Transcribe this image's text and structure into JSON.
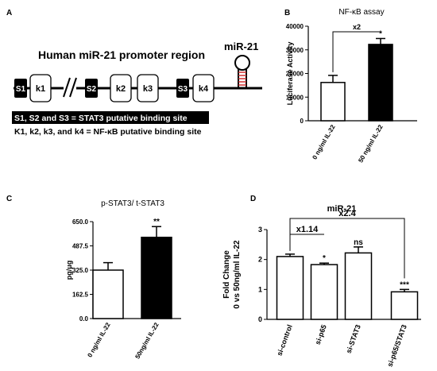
{
  "panels": {
    "A": {
      "letter": "A",
      "title": "Human miR-21 promoter region",
      "mir_label": "miR-21",
      "stat_sites": [
        "S1",
        "S2",
        "S3"
      ],
      "nfkb_sites": [
        "k1",
        "k2",
        "k3",
        "k4"
      ],
      "legend_stat3": "S1, S2 and S3 = STAT3 putative binding site",
      "legend_nfkb": "K1, k2, k3, and k4 = NF-κB putative binding site"
    },
    "B": {
      "letter": "B"
    },
    "C": {
      "letter": "C"
    },
    "D": {
      "letter": "D"
    }
  },
  "chart_data": [
    {
      "type": "bar",
      "panel": "B",
      "title": "NF-κB assay",
      "ylabel": "Luciferase Activity",
      "xlabel": "",
      "categories": [
        "0 ng/ml IL-22",
        "50 ng/ml IL-22"
      ],
      "values": [
        16200,
        32300
      ],
      "errors": [
        3000,
        2500
      ],
      "fills": [
        "#ffffff",
        "#000000"
      ],
      "yticks": [
        "0",
        "10000",
        "20000",
        "30000",
        "40000"
      ],
      "ylim": [
        0,
        40000
      ],
      "annotations": {
        "fold": "x2",
        "significance": [
          "",
          "*"
        ]
      }
    },
    {
      "type": "bar",
      "panel": "C",
      "title": "p-STAT3/ t-STAT3",
      "ylabel": "pg/μg",
      "xlabel": "",
      "categories": [
        "0 ng/ml IL-22",
        "50ng/ml IL-22"
      ],
      "values": [
        325,
        545
      ],
      "errors": [
        50,
        72
      ],
      "fills": [
        "#ffffff",
        "#000000"
      ],
      "yticks": [
        "0.0",
        "162.5",
        "325.0",
        "487.5",
        "650.0"
      ],
      "ylim": [
        0,
        650
      ],
      "annotations": {
        "significance": [
          "",
          "**"
        ]
      }
    },
    {
      "type": "bar",
      "panel": "D",
      "title": "miR-21",
      "ylabel": "Fold Change\n0 vs 50ng/ml IL-22",
      "xlabel": "",
      "categories": [
        "si-control",
        "si-p65",
        "si-STAT3",
        "si-p65/STAT3"
      ],
      "values": [
        2.1,
        1.83,
        2.22,
        0.92
      ],
      "errors": [
        0.08,
        0.05,
        0.2,
        0.08
      ],
      "fills": [
        "#ffffff",
        "#ffffff",
        "#ffffff",
        "#ffffff"
      ],
      "yticks": [
        "0",
        "1",
        "2",
        "3"
      ],
      "ylim": [
        0,
        3
      ],
      "annotations": {
        "significance": [
          "",
          "*",
          "ns",
          "***"
        ],
        "fold_1": "x1.14",
        "fold_2": "x2.4"
      }
    }
  ]
}
